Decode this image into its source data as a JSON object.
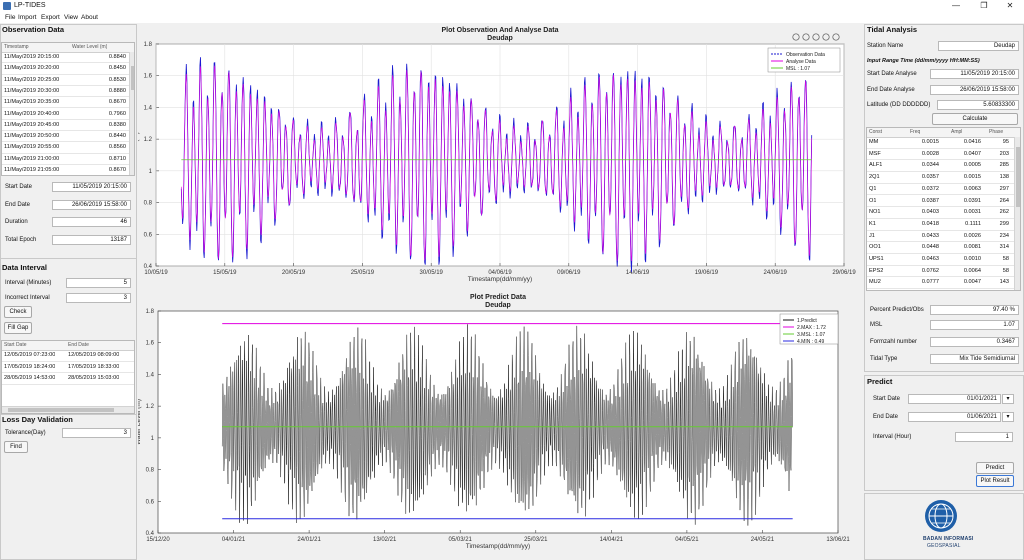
{
  "window": {
    "title": "LP-TIDES",
    "min": "—",
    "restore": "❐",
    "close": "✕"
  },
  "menu": [
    "File",
    "Import",
    "Export",
    "View",
    "About"
  ],
  "observation": {
    "title": "Observation Data",
    "columns": [
      "Timestamp",
      "Water Level (m)"
    ],
    "rows": [
      [
        "11/May/2019 20:15:00",
        "0.8840"
      ],
      [
        "11/May/2019 20:20:00",
        "0.8450"
      ],
      [
        "11/May/2019 20:25:00",
        "0.8530"
      ],
      [
        "11/May/2019 20:30:00",
        "0.8880"
      ],
      [
        "11/May/2019 20:35:00",
        "0.8670"
      ],
      [
        "11/May/2019 20:40:00",
        "0.7960"
      ],
      [
        "11/May/2019 20:45:00",
        "0.8380"
      ],
      [
        "11/May/2019 20:50:00",
        "0.8440"
      ],
      [
        "11/May/2019 20:55:00",
        "0.8560"
      ],
      [
        "11/May/2019 21:00:00",
        "0.8710"
      ],
      [
        "11/May/2019 21:05:00",
        "0.8670"
      ]
    ],
    "start_date_label": "Start Date",
    "start_date": "11/05/2019 20:15:00",
    "end_date_label": "End Date",
    "end_date": "26/06/2019 15:58:00",
    "duration_label": "Duration",
    "duration": "46",
    "total_epoch_label": "Total Epoch",
    "total_epoch": "13187"
  },
  "interval": {
    "title": "Data Interval",
    "interval_label": "Interval (Minutes)",
    "interval": "5",
    "incorrect_label": "Incorrect Interval",
    "incorrect": "3",
    "check_btn": "Check",
    "fill_gap_btn": "Fill Gap",
    "columns": [
      "Start Date",
      "End Date"
    ],
    "rows": [
      [
        "12/05/2019 07:23:00",
        "12/05/2019 08:09:00"
      ],
      [
        "17/05/2019 18:24:00",
        "17/05/2019 18:33:00"
      ],
      [
        "28/05/2019 14:53:00",
        "28/05/2019 15:03:00"
      ]
    ]
  },
  "loss": {
    "title": "Loss Day Validation",
    "tolerance_label": "Tolerance(Day)",
    "tolerance": "3",
    "find_btn": "Find"
  },
  "plot1": {
    "title": "Plot Observation And Analyse Data",
    "subtitle": "Deudap",
    "toolbar_icons": [
      "brush-icon",
      "pan-icon",
      "zoom-in-icon",
      "zoom-out-icon",
      "home-icon"
    ]
  },
  "plot2": {
    "title": "Plot Predict Data",
    "subtitle": "Deudap"
  },
  "tidal": {
    "title": "Tidal Analysis",
    "station_label": "Station Name",
    "station": "Deudap",
    "hint": "Input Range Time (dd/mm/yyyy HH:MM:SS)",
    "start_label": "Start Date Analyse",
    "start": "11/05/2019 20:15:00",
    "end_label": "End Date Analyse",
    "end": "26/06/2019 15:58:00",
    "lat_label": "Latitude (DD DDDDDD)",
    "lat": "5.60833300",
    "calc_btn": "Calculate",
    "columns": [
      "Const",
      "Freq",
      "Ampl",
      "Phase"
    ],
    "rows": [
      [
        "MM",
        "0.0015",
        "0.0416",
        "95"
      ],
      [
        "MSF",
        "0.0028",
        "0.0407",
        "203"
      ],
      [
        "ALF1",
        "0.0344",
        "0.0005",
        "285"
      ],
      [
        "2Q1",
        "0.0357",
        "0.0015",
        "138"
      ],
      [
        "Q1",
        "0.0372",
        "0.0063",
        "297"
      ],
      [
        "O1",
        "0.0387",
        "0.0391",
        "264"
      ],
      [
        "NO1",
        "0.0403",
        "0.0031",
        "262"
      ],
      [
        "K1",
        "0.0418",
        "0.1111",
        "299"
      ],
      [
        "J1",
        "0.0433",
        "0.0026",
        "234"
      ],
      [
        "OO1",
        "0.0448",
        "0.0081",
        "314"
      ],
      [
        "UPS1",
        "0.0463",
        "0.0010",
        "58"
      ],
      [
        "EPS2",
        "0.0762",
        "0.0064",
        "58"
      ],
      [
        "MU2",
        "0.0777",
        "0.0047",
        "143"
      ]
    ],
    "percent_label": "Percent Predict/Obs",
    "percent": "97.40 %",
    "msl_label": "MSL",
    "msl": "1.07",
    "formzahl_label": "Formzahl number",
    "formzahl": "0.3467",
    "tidaltype_label": "Tidal Type",
    "tidaltype": "Mix Tide Semidiurnal"
  },
  "predict": {
    "title": "Predict",
    "start_label": "Start Date",
    "start": "01/01/2021",
    "end_label": "End Date",
    "end": "01/06/2021",
    "interval_label": "Interval (Hour)",
    "interval": "1",
    "predict_btn": "Predict",
    "plot_btn": "Plot Result",
    "logo_line1": "BADAN INFORMASI",
    "logo_line2": "GEOSPASIAL"
  },
  "colors": {
    "observation": "#1a1ad0",
    "analyse": "#e000e0",
    "msl": "#66cc33",
    "predict": "#111111",
    "max": "#e000e0",
    "min": "#2a2ae0"
  },
  "chart_data": [
    {
      "type": "line",
      "title": "Plot Observation And Analyse Data",
      "subtitle": "Deudap",
      "xlabel": "Timestamp(dd/mm/yy)",
      "ylabel": "Water Level (m)",
      "xticks": [
        "10/05/19",
        "15/05/19",
        "20/05/19",
        "25/05/19",
        "30/05/19",
        "04/06/19",
        "09/06/19",
        "14/06/19",
        "19/06/19",
        "24/06/19",
        "29/06/19"
      ],
      "yticks": [
        "0.4",
        "0.6",
        "0.8",
        "1",
        "1.2",
        "1.4",
        "1.6",
        "1.8"
      ],
      "ylim": [
        0.4,
        1.8
      ],
      "xlim_days": [
        0,
        50
      ],
      "data_range_days": [
        1.84,
        47.66
      ],
      "legend": [
        "Observation Data",
        "Analyse Data",
        "MSL : 1.07"
      ],
      "legend_position": "top-right",
      "series": [
        {
          "name": "Observation Data",
          "style": "dashed",
          "envelope": {
            "mean": 1.07,
            "amp_max": 0.66,
            "amp_min": 0.22
          }
        },
        {
          "name": "Analyse Data",
          "style": "solid",
          "envelope": {
            "mean": 1.07,
            "amp_max": 0.62,
            "amp_min": 0.2
          }
        },
        {
          "name": "MSL : 1.07",
          "style": "solid",
          "value": 1.07
        }
      ],
      "grid": true
    },
    {
      "type": "line",
      "title": "Plot Predict Data",
      "subtitle": "Deudap",
      "xlabel": "Timestamp(dd/mm/yy)",
      "ylabel": "Water Level (m)",
      "xticks": [
        "15/12/20",
        "04/01/21",
        "24/01/21",
        "13/02/21",
        "05/03/21",
        "25/03/21",
        "14/04/21",
        "04/05/21",
        "24/05/21",
        "13/06/21"
      ],
      "yticks": [
        "0.4",
        "0.6",
        "0.8",
        "1",
        "1.2",
        "1.4",
        "1.6",
        "1.8"
      ],
      "ylim": [
        0.4,
        1.8
      ],
      "xlim_days": [
        0,
        180
      ],
      "data_range_days": [
        17,
        168
      ],
      "legend": [
        "1.Predict",
        "2.MAX : 1.72",
        "3.MSL : 1.07",
        "4.MIN : 0.49"
      ],
      "legend_position": "top-right",
      "series": [
        {
          "name": "1.Predict",
          "style": "solid",
          "envelope": {
            "mean": 1.07,
            "amp_max": 0.62,
            "amp_min": 0.24
          }
        },
        {
          "name": "2.MAX : 1.72",
          "value": 1.72
        },
        {
          "name": "3.MSL : 1.07",
          "value": 1.07
        },
        {
          "name": "4.MIN : 0.49",
          "value": 0.49
        }
      ],
      "grid": false
    }
  ]
}
